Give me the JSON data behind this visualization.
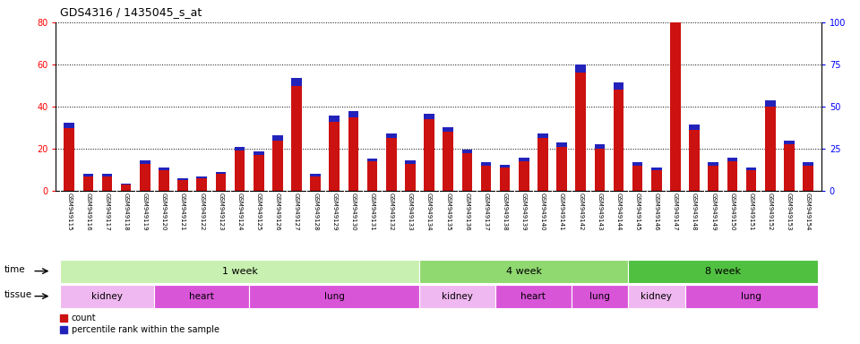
{
  "title": "GDS4316 / 1435045_s_at",
  "samples": [
    "GSM949115",
    "GSM949116",
    "GSM949117",
    "GSM949118",
    "GSM949119",
    "GSM949120",
    "GSM949121",
    "GSM949122",
    "GSM949123",
    "GSM949124",
    "GSM949125",
    "GSM949126",
    "GSM949127",
    "GSM949128",
    "GSM949129",
    "GSM949130",
    "GSM949131",
    "GSM949132",
    "GSM949133",
    "GSM949134",
    "GSM949135",
    "GSM949136",
    "GSM949137",
    "GSM949138",
    "GSM949139",
    "GSM949140",
    "GSM949141",
    "GSM949142",
    "GSM949143",
    "GSM949144",
    "GSM949145",
    "GSM949146",
    "GSM949147",
    "GSM949148",
    "GSM949149",
    "GSM949150",
    "GSM949151",
    "GSM949152",
    "GSM949153",
    "GSM949154"
  ],
  "count": [
    30,
    7,
    7,
    3,
    13,
    10,
    5,
    6,
    8,
    19,
    17,
    24,
    50,
    7,
    33,
    35,
    14,
    25,
    13,
    34,
    28,
    18,
    12,
    11,
    14,
    25,
    21,
    56,
    20,
    48,
    12,
    10,
    80,
    29,
    12,
    14,
    10,
    40,
    22,
    12
  ],
  "blue_bar": [
    2.5,
    1.0,
    1.0,
    0.5,
    1.5,
    1.2,
    0.8,
    1.0,
    1.0,
    2.0,
    1.8,
    2.2,
    3.5,
    1.0,
    2.8,
    3.0,
    1.5,
    2.2,
    1.5,
    2.8,
    2.2,
    1.8,
    1.5,
    1.5,
    1.8,
    2.2,
    2.0,
    3.8,
    2.0,
    3.5,
    1.5,
    1.2,
    5.0,
    2.5,
    1.5,
    1.8,
    1.2,
    3.0,
    2.0,
    1.5
  ],
  "time_groups": [
    {
      "label": "1 week",
      "start": 0,
      "end": 18,
      "color": "#c8f0b0"
    },
    {
      "label": "4 week",
      "start": 19,
      "end": 29,
      "color": "#90d870"
    },
    {
      "label": "8 week",
      "start": 30,
      "end": 39,
      "color": "#50c040"
    }
  ],
  "tissue_groups": [
    {
      "label": "kidney",
      "start": 0,
      "end": 4,
      "color": "#f0b8f0"
    },
    {
      "label": "heart",
      "start": 5,
      "end": 9,
      "color": "#d855d8"
    },
    {
      "label": "lung",
      "start": 10,
      "end": 18,
      "color": "#d855d8"
    },
    {
      "label": "kidney",
      "start": 19,
      "end": 22,
      "color": "#f0b8f0"
    },
    {
      "label": "heart",
      "start": 23,
      "end": 26,
      "color": "#d855d8"
    },
    {
      "label": "lung",
      "start": 27,
      "end": 29,
      "color": "#d855d8"
    },
    {
      "label": "kidney",
      "start": 30,
      "end": 32,
      "color": "#f0b8f0"
    },
    {
      "label": "lung",
      "start": 33,
      "end": 39,
      "color": "#d855d8"
    }
  ],
  "ylim_left": [
    0,
    80
  ],
  "ylim_right": [
    0,
    100
  ],
  "yticks_left": [
    0,
    20,
    40,
    60,
    80
  ],
  "yticks_right": [
    0,
    25,
    50,
    75,
    100
  ],
  "bar_color_red": "#cc1111",
  "bar_color_blue": "#2222bb",
  "bar_width": 0.55,
  "plot_bg": "#ffffff",
  "tick_bg": "#d0d0d0",
  "legend_count_label": "count",
  "legend_percentile_label": "percentile rank within the sample"
}
